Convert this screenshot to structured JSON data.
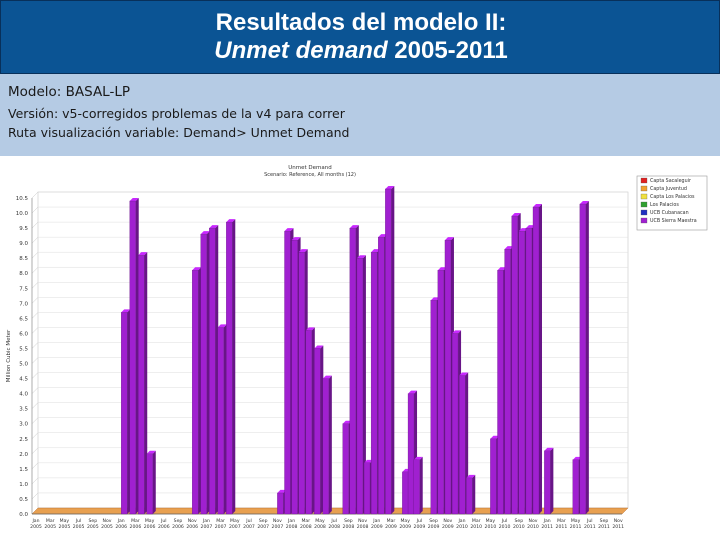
{
  "header": {
    "title_line1": "Resultados del modelo II:",
    "title_line2_italic": "Unmet demand",
    "title_line2_rest": " 2005-2011",
    "bg_color": "#0b5494"
  },
  "info": {
    "model": "Modelo: BASAL-LP",
    "version": "Versión: v5-corregidos problemas de la v4 para correr",
    "path": "Ruta visualización variable: Demand> Unmet Demand",
    "bg_color": "#b5cbe4"
  },
  "chart_data": {
    "type": "bar",
    "title": "Unmet Demand",
    "subtitle": "Scenario: Reference, All months (12)",
    "ylabel": "Million Cubic Meter",
    "ylim": [
      0,
      10.5
    ],
    "yticks": [
      "0.0",
      "0.5",
      "1.0",
      "1.5",
      "2.0",
      "2.5",
      "3.0",
      "3.5",
      "4.0",
      "4.5",
      "5.0",
      "5.5",
      "6.0",
      "6.5",
      "7.0",
      "7.5",
      "8.0",
      "8.5",
      "9.0",
      "9.5",
      "10.0",
      "10.5"
    ],
    "xtick_labels": [
      {
        "m": "Jan",
        "y": "2005"
      },
      {
        "m": "Mar",
        "y": "2005"
      },
      {
        "m": "May",
        "y": "2005"
      },
      {
        "m": "Jul",
        "y": "2005"
      },
      {
        "m": "Sep",
        "y": "2005"
      },
      {
        "m": "Nov",
        "y": "2005"
      },
      {
        "m": "Jan",
        "y": "2006"
      },
      {
        "m": "Mar",
        "y": "2006"
      },
      {
        "m": "May",
        "y": "2006"
      },
      {
        "m": "Jul",
        "y": "2006"
      },
      {
        "m": "Sep",
        "y": "2006"
      },
      {
        "m": "Nov",
        "y": "2006"
      },
      {
        "m": "Jan",
        "y": "2007"
      },
      {
        "m": "Mar",
        "y": "2007"
      },
      {
        "m": "May",
        "y": "2007"
      },
      {
        "m": "Jul",
        "y": "2007"
      },
      {
        "m": "Sep",
        "y": "2007"
      },
      {
        "m": "Nov",
        "y": "2007"
      },
      {
        "m": "Jan",
        "y": "2008"
      },
      {
        "m": "Mar",
        "y": "2008"
      },
      {
        "m": "May",
        "y": "2008"
      },
      {
        "m": "Jul",
        "y": "2008"
      },
      {
        "m": "Sep",
        "y": "2008"
      },
      {
        "m": "Nov",
        "y": "2008"
      },
      {
        "m": "Jan",
        "y": "2009"
      },
      {
        "m": "Mar",
        "y": "2009"
      },
      {
        "m": "May",
        "y": "2009"
      },
      {
        "m": "Jul",
        "y": "2009"
      },
      {
        "m": "Sep",
        "y": "2009"
      },
      {
        "m": "Nov",
        "y": "2009"
      },
      {
        "m": "Jan",
        "y": "2010"
      },
      {
        "m": "Mar",
        "y": "2010"
      },
      {
        "m": "May",
        "y": "2010"
      },
      {
        "m": "Jul",
        "y": "2010"
      },
      {
        "m": "Sep",
        "y": "2010"
      },
      {
        "m": "Nov",
        "y": "2010"
      },
      {
        "m": "Jan",
        "y": "2011"
      },
      {
        "m": "Mar",
        "y": "2011"
      },
      {
        "m": "May",
        "y": "2011"
      },
      {
        "m": "Jul",
        "y": "2011"
      },
      {
        "m": "Sep",
        "y": "2011"
      },
      {
        "m": "Nov",
        "y": "2011"
      }
    ],
    "legend_position": "top-right",
    "legend": [
      {
        "name": "Capta Sacaleguir",
        "color": "#e02020"
      },
      {
        "name": "Capta Juventud",
        "color": "#f0a030"
      },
      {
        "name": "Capta Los Palacios",
        "color": "#f0e040"
      },
      {
        "name": "Los Palacios",
        "color": "#30a030"
      },
      {
        "name": "UCB Cubanacan",
        "color": "#2030c0"
      },
      {
        "name": "UCB Sierra Maestra",
        "color": "#a020d0"
      }
    ],
    "bar_color": "#a020d0",
    "floor_color": "#e8a050",
    "series": [
      {
        "name": "UCB Sierra Maestra",
        "values": [
          0,
          0,
          0,
          0,
          0,
          0,
          0,
          0,
          0,
          0,
          0,
          0,
          0,
          0,
          0,
          0,
          0,
          0,
          0,
          0,
          0,
          0,
          0,
          0,
          0,
          0,
          0,
          0,
          0,
          0,
          0,
          0,
          0,
          0,
          0,
          0,
          0,
          0,
          0,
          0,
          0,
          0,
          0,
          0,
          0,
          0,
          0,
          0,
          0,
          0,
          0,
          0,
          0,
          0,
          0,
          0,
          0,
          0,
          0,
          0,
          0,
          0,
          0,
          0,
          0,
          0,
          0,
          0,
          0,
          0,
          0,
          0,
          0,
          0,
          0,
          0,
          0,
          0,
          0,
          0,
          0,
          0,
          0,
          0
        ]
      }
    ],
    "bars": [
      {
        "xi": 6.0,
        "value": 6.7
      },
      {
        "xi": 6.6,
        "value": 10.4
      },
      {
        "xi": 7.2,
        "value": 8.6
      },
      {
        "xi": 7.8,
        "value": 2.0
      },
      {
        "xi": 11.0,
        "value": 8.1
      },
      {
        "xi": 11.6,
        "value": 9.3
      },
      {
        "xi": 12.2,
        "value": 9.5
      },
      {
        "xi": 12.8,
        "value": 6.2
      },
      {
        "xi": 13.4,
        "value": 9.7
      },
      {
        "xi": 17.0,
        "value": 0.7
      },
      {
        "xi": 17.5,
        "value": 9.4
      },
      {
        "xi": 18.0,
        "value": 9.1
      },
      {
        "xi": 18.5,
        "value": 8.7
      },
      {
        "xi": 19.0,
        "value": 6.1
      },
      {
        "xi": 19.6,
        "value": 5.5
      },
      {
        "xi": 20.2,
        "value": 4.5
      },
      {
        "xi": 21.6,
        "value": 3.0
      },
      {
        "xi": 22.1,
        "value": 9.5
      },
      {
        "xi": 22.6,
        "value": 8.5
      },
      {
        "xi": 23.1,
        "value": 1.7
      },
      {
        "xi": 23.6,
        "value": 8.7
      },
      {
        "xi": 24.1,
        "value": 9.2
      },
      {
        "xi": 24.6,
        "value": 10.8
      },
      {
        "xi": 25.8,
        "value": 1.4
      },
      {
        "xi": 26.2,
        "value": 4.0
      },
      {
        "xi": 26.6,
        "value": 1.8
      },
      {
        "xi": 27.8,
        "value": 7.1
      },
      {
        "xi": 28.3,
        "value": 8.1
      },
      {
        "xi": 28.8,
        "value": 9.1
      },
      {
        "xi": 29.3,
        "value": 6.0
      },
      {
        "xi": 29.8,
        "value": 4.6
      },
      {
        "xi": 30.3,
        "value": 1.2
      },
      {
        "xi": 32.0,
        "value": 2.5
      },
      {
        "xi": 32.5,
        "value": 8.1
      },
      {
        "xi": 33.0,
        "value": 8.8
      },
      {
        "xi": 33.5,
        "value": 9.9
      },
      {
        "xi": 34.0,
        "value": 9.4
      },
      {
        "xi": 34.5,
        "value": 9.5
      },
      {
        "xi": 35.0,
        "value": 10.2
      },
      {
        "xi": 35.8,
        "value": 2.1
      },
      {
        "xi": 37.8,
        "value": 1.8
      },
      {
        "xi": 38.3,
        "value": 10.3
      }
    ]
  }
}
